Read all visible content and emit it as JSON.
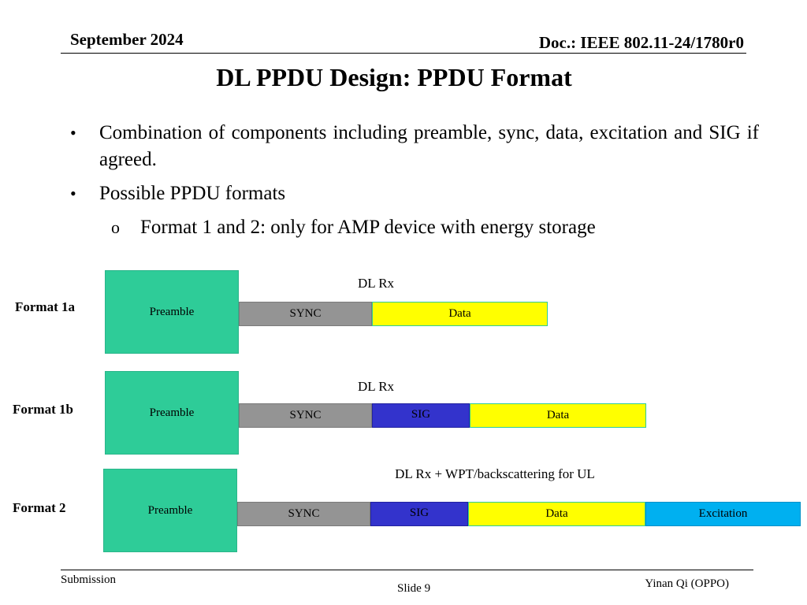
{
  "header": {
    "date": "September 2024",
    "doc": "Doc.: IEEE 802.11-24/1780r0"
  },
  "title": "DL PPDU Design: PPDU Format",
  "bullets": {
    "b1": "Combination of components including preamble, sync, data, excitation and SIG if agreed.",
    "b2": "Possible PPDU formats",
    "b3": "Format 1 and 2: only for AMP device with energy storage",
    "dot": "•",
    "sub_dot": "o"
  },
  "diagram": {
    "colors": {
      "preamble": "#2ecc98",
      "sync": "#949494",
      "sig": "#3333cc",
      "data": "#ffff00",
      "excitation": "#00b0f0"
    },
    "format1a": {
      "label": "Format 1a",
      "rx": "DL Rx",
      "preamble": "Preamble",
      "sync": "SYNC",
      "data": "Data"
    },
    "format1b": {
      "label": "Format 1b",
      "rx": "DL Rx",
      "preamble": "Preamble",
      "sync": "SYNC",
      "sig": "SIG",
      "data": "Data"
    },
    "format2": {
      "label": "Format 2",
      "rx": "DL Rx + WPT/backscattering for UL",
      "preamble": "Preamble",
      "sync": "SYNC",
      "sig": "SIG",
      "data": "Data",
      "excitation": "Excitation"
    }
  },
  "footer": {
    "submission": "Submission",
    "slide": "Slide 9",
    "author": "Yinan Qi (OPPO)"
  }
}
